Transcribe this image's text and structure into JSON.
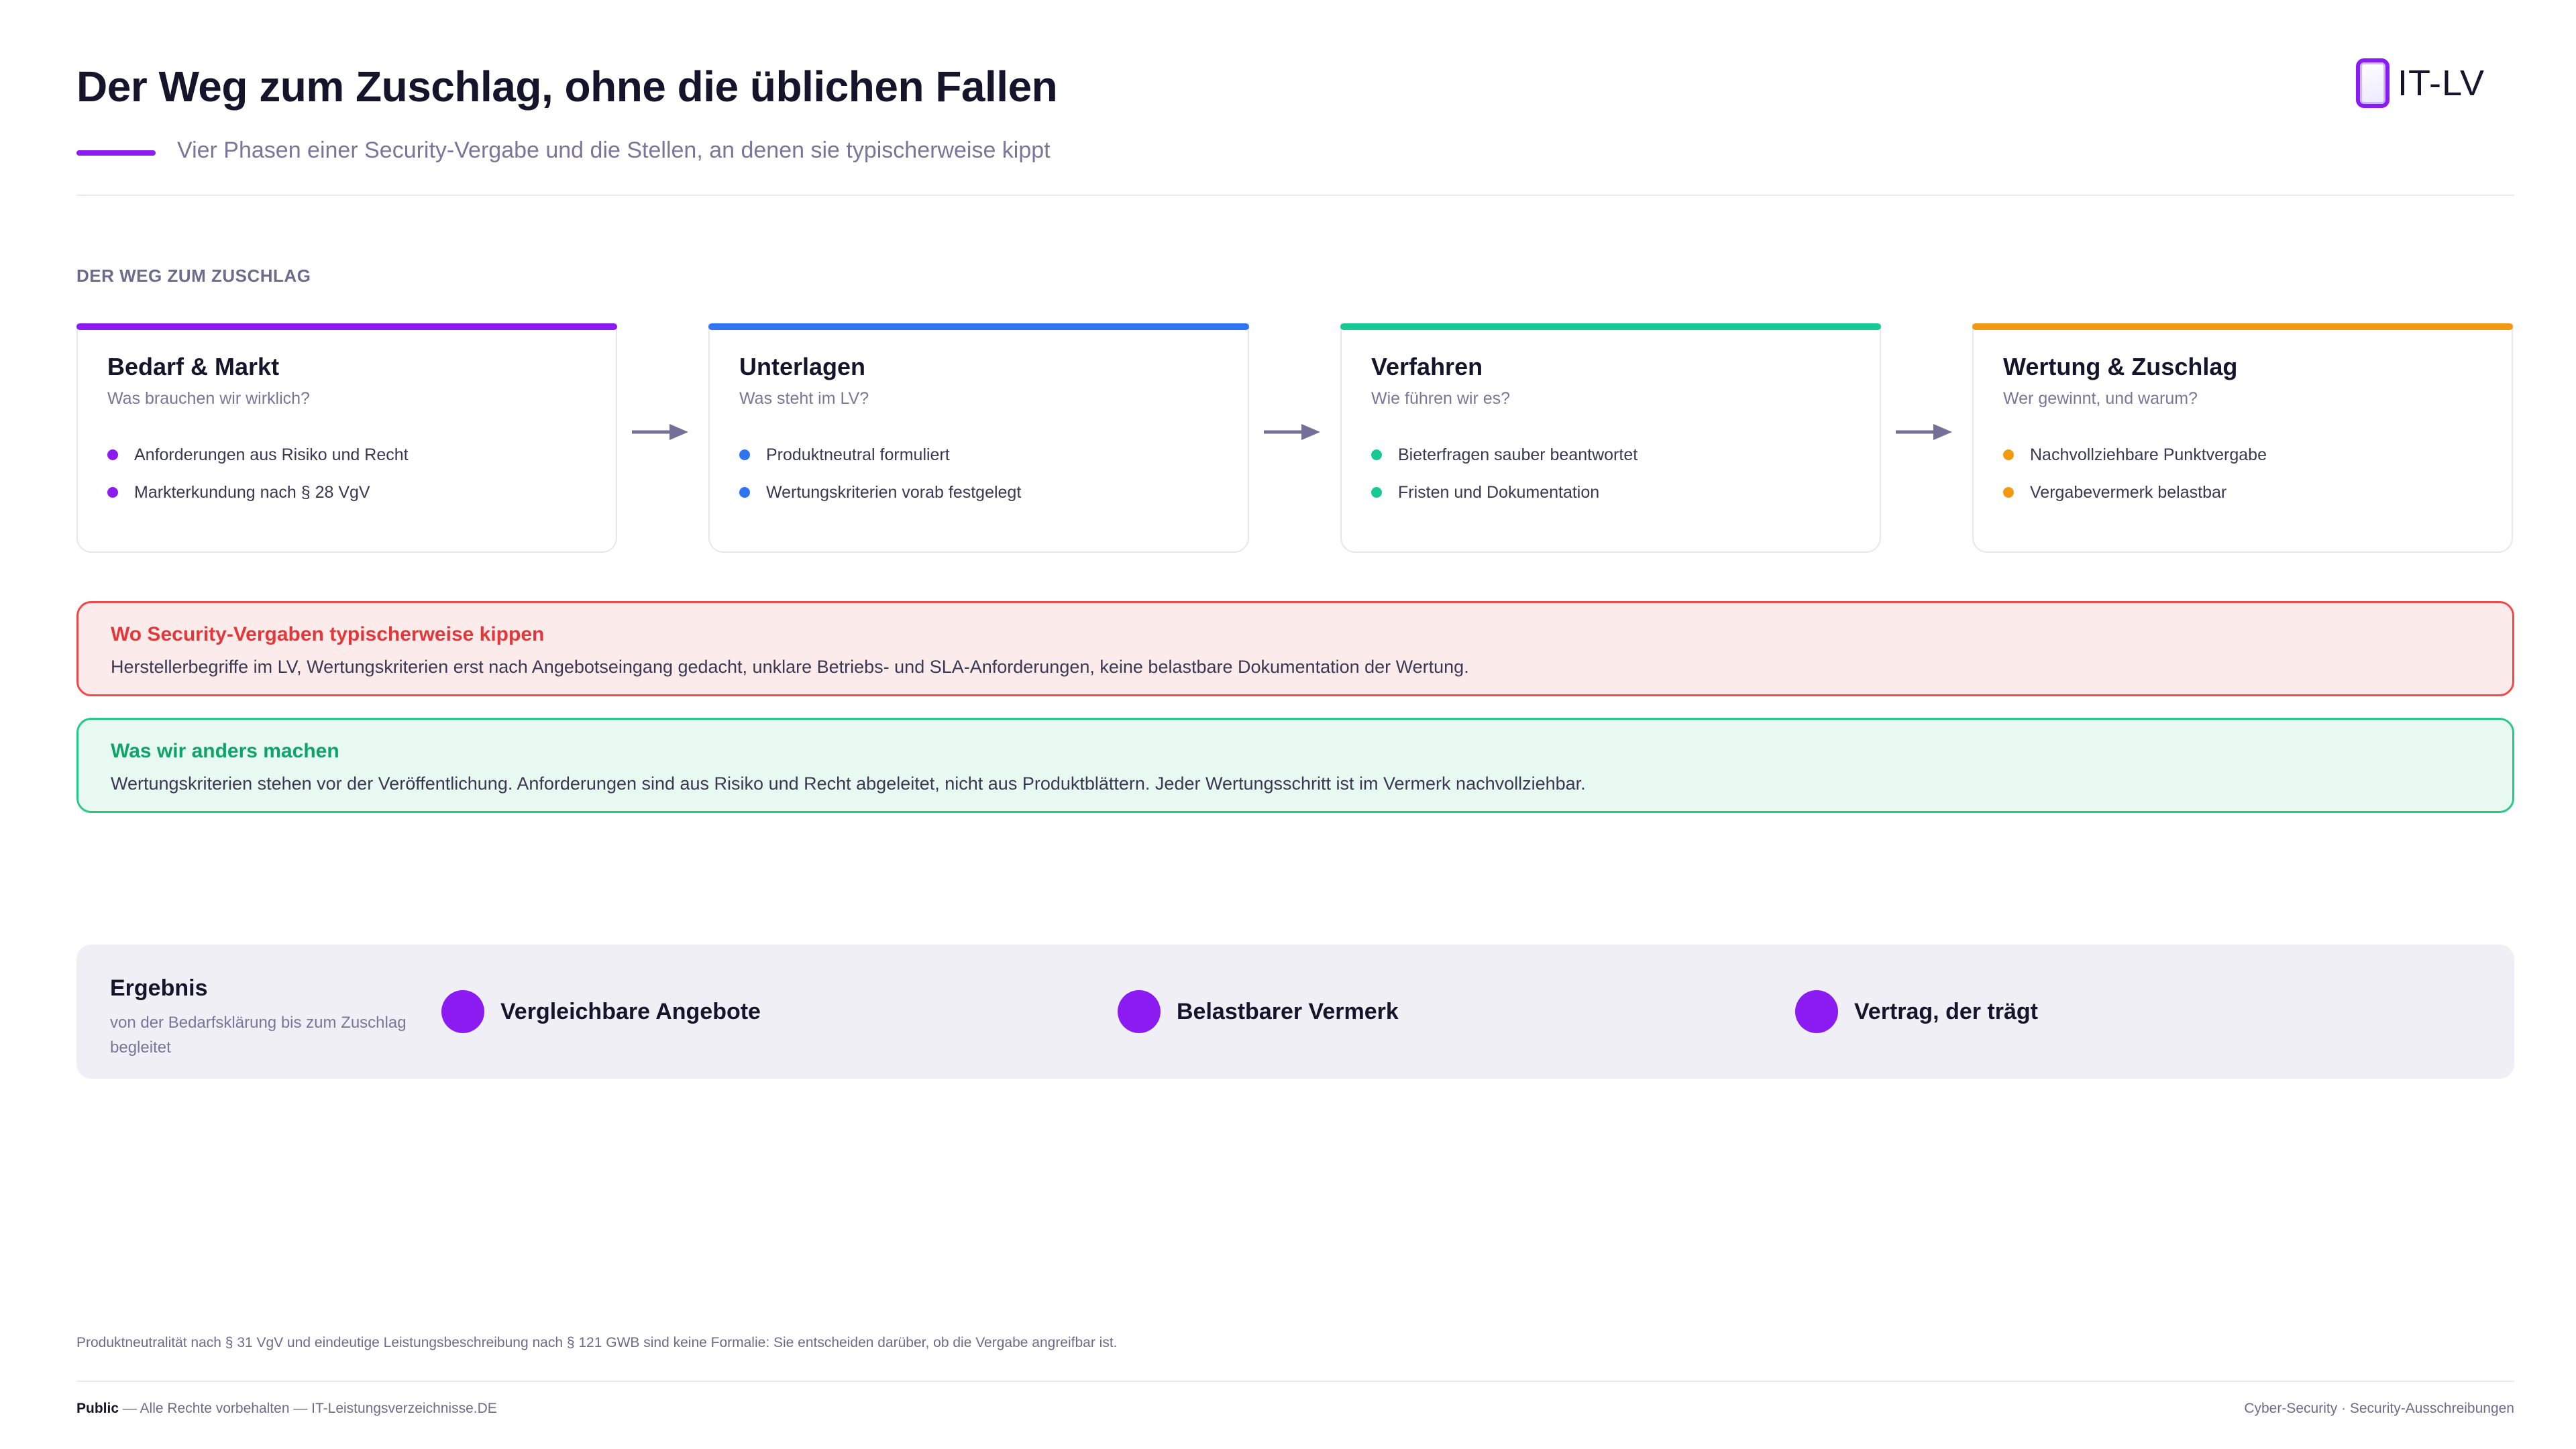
{
  "header": {
    "title": "Der Weg zum Zuschlag, ohne die üblichen Fallen",
    "subtitle": "Vier Phasen einer Security-Vergabe und die Stellen, an denen sie typischerweise kippt",
    "logo_text": "IT-LV"
  },
  "section_label": "DER WEG ZUM ZUSCHLAG",
  "phases": [
    {
      "title": "Bedarf & Markt",
      "subtitle": "Was brauchen wir wirklich?",
      "color": "#8b1bf0",
      "items": [
        "Anforderungen aus Risiko und Recht",
        "Markterkundung nach § 28 VgV"
      ]
    },
    {
      "title": "Unterlagen",
      "subtitle": "Was steht im LV?",
      "color": "#2f74f0",
      "items": [
        "Produktneutral formuliert",
        "Wertungskriterien vorab festgelegt"
      ]
    },
    {
      "title": "Verfahren",
      "subtitle": "Wie führen wir es?",
      "color": "#16c995",
      "items": [
        "Bieterfragen sauber beantwortet",
        "Fristen und Dokumentation"
      ]
    },
    {
      "title": "Wertung & Zuschlag",
      "subtitle": "Wer gewinnt, und warum?",
      "color": "#f09a12",
      "items": [
        "Nachvollziehbare Punktvergabe",
        "Vergabevermerk belastbar"
      ]
    }
  ],
  "warning": {
    "title": "Wo Security-Vergaben typischerweise kippen",
    "text": "Herstellerbegriffe im LV, Wertungskriterien erst nach Angebotseingang gedacht, unklare Betriebs- und SLA-Anforderungen, keine belastbare Dokumentation der Wertung."
  },
  "approach": {
    "title": "Was wir anders machen",
    "text": "Wertungskriterien stehen vor der Veröffentlichung. Anforderungen sind aus Risiko und Recht abgeleitet, nicht aus Produktblättern. Jeder Wertungsschritt ist im Vermerk nachvollziehbar."
  },
  "result": {
    "title": "Ergebnis",
    "subtitle": "von der Bedarfsklärung bis zum Zuschlag begleitet",
    "outcomes": [
      "Vergleichbare Angebote",
      "Belastbarer Vermerk",
      "Vertrag, der trägt"
    ]
  },
  "footnote": "Produktneutralität nach § 31 VgV und eindeutige Leistungsbeschreibung nach § 121 GWB sind keine Formalie: Sie entscheiden darüber, ob die Vergabe angreifbar ist.",
  "footer": {
    "classification": "Public",
    "rights": " — Alle Rechte vorbehalten — IT-Leistungsverzeichnisse.DE",
    "topic": "Cyber-Security · Security-Ausschreibungen"
  },
  "colors": {
    "accent": "#8b1bf0",
    "warning": "#ef4a4a",
    "success": "#26c985"
  }
}
